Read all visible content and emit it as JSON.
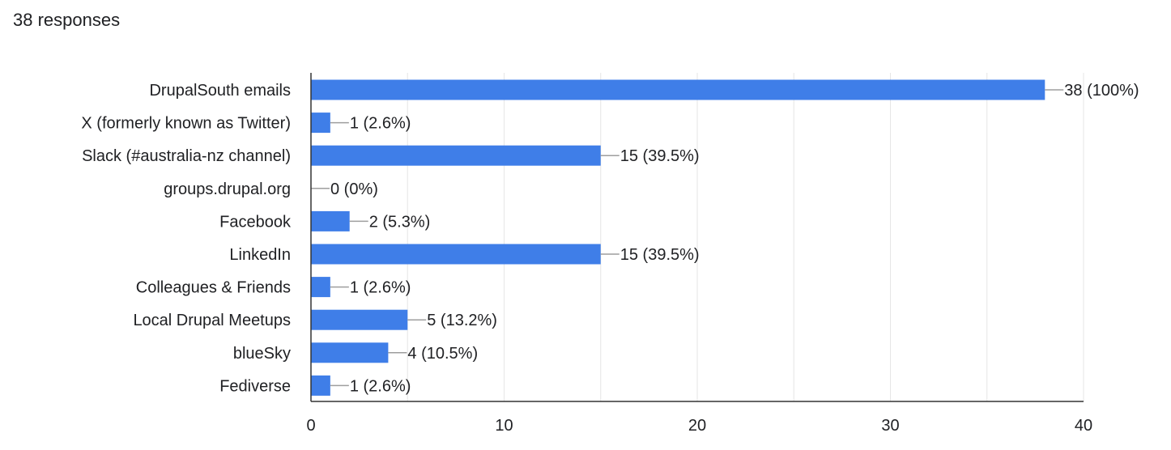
{
  "summary": {
    "responses_label": "38 responses"
  },
  "colors": {
    "bar": "#3f7ee8",
    "grid": "#e6e6e6",
    "axis": "#333333",
    "leader": "#9e9e9e",
    "text": "#202124"
  },
  "chart_data": {
    "type": "bar",
    "orientation": "horizontal",
    "categories": [
      "DrupalSouth emails",
      "X (formerly known as Twitter)",
      "Slack (#australia-nz channel)",
      "groups.drupal.org",
      "Facebook",
      "LinkedIn",
      "Colleagues & Friends",
      "Local Drupal Meetups",
      "blueSky",
      "Fediverse"
    ],
    "values": [
      38,
      1,
      15,
      0,
      2,
      15,
      1,
      5,
      4,
      1
    ],
    "data_labels": [
      "38 (100%)",
      "1 (2.6%)",
      "15 (39.5%)",
      "0 (0%)",
      "2 (5.3%)",
      "15 (39.5%)",
      "1 (2.6%)",
      "5 (13.2%)",
      "4 (10.5%)",
      "1 (2.6%)"
    ],
    "xlim": [
      0,
      40
    ],
    "x_ticks": [
      0,
      10,
      20,
      30,
      40
    ],
    "minor_grid_step": 5,
    "grid": true,
    "title": "",
    "xlabel": "",
    "ylabel": ""
  }
}
